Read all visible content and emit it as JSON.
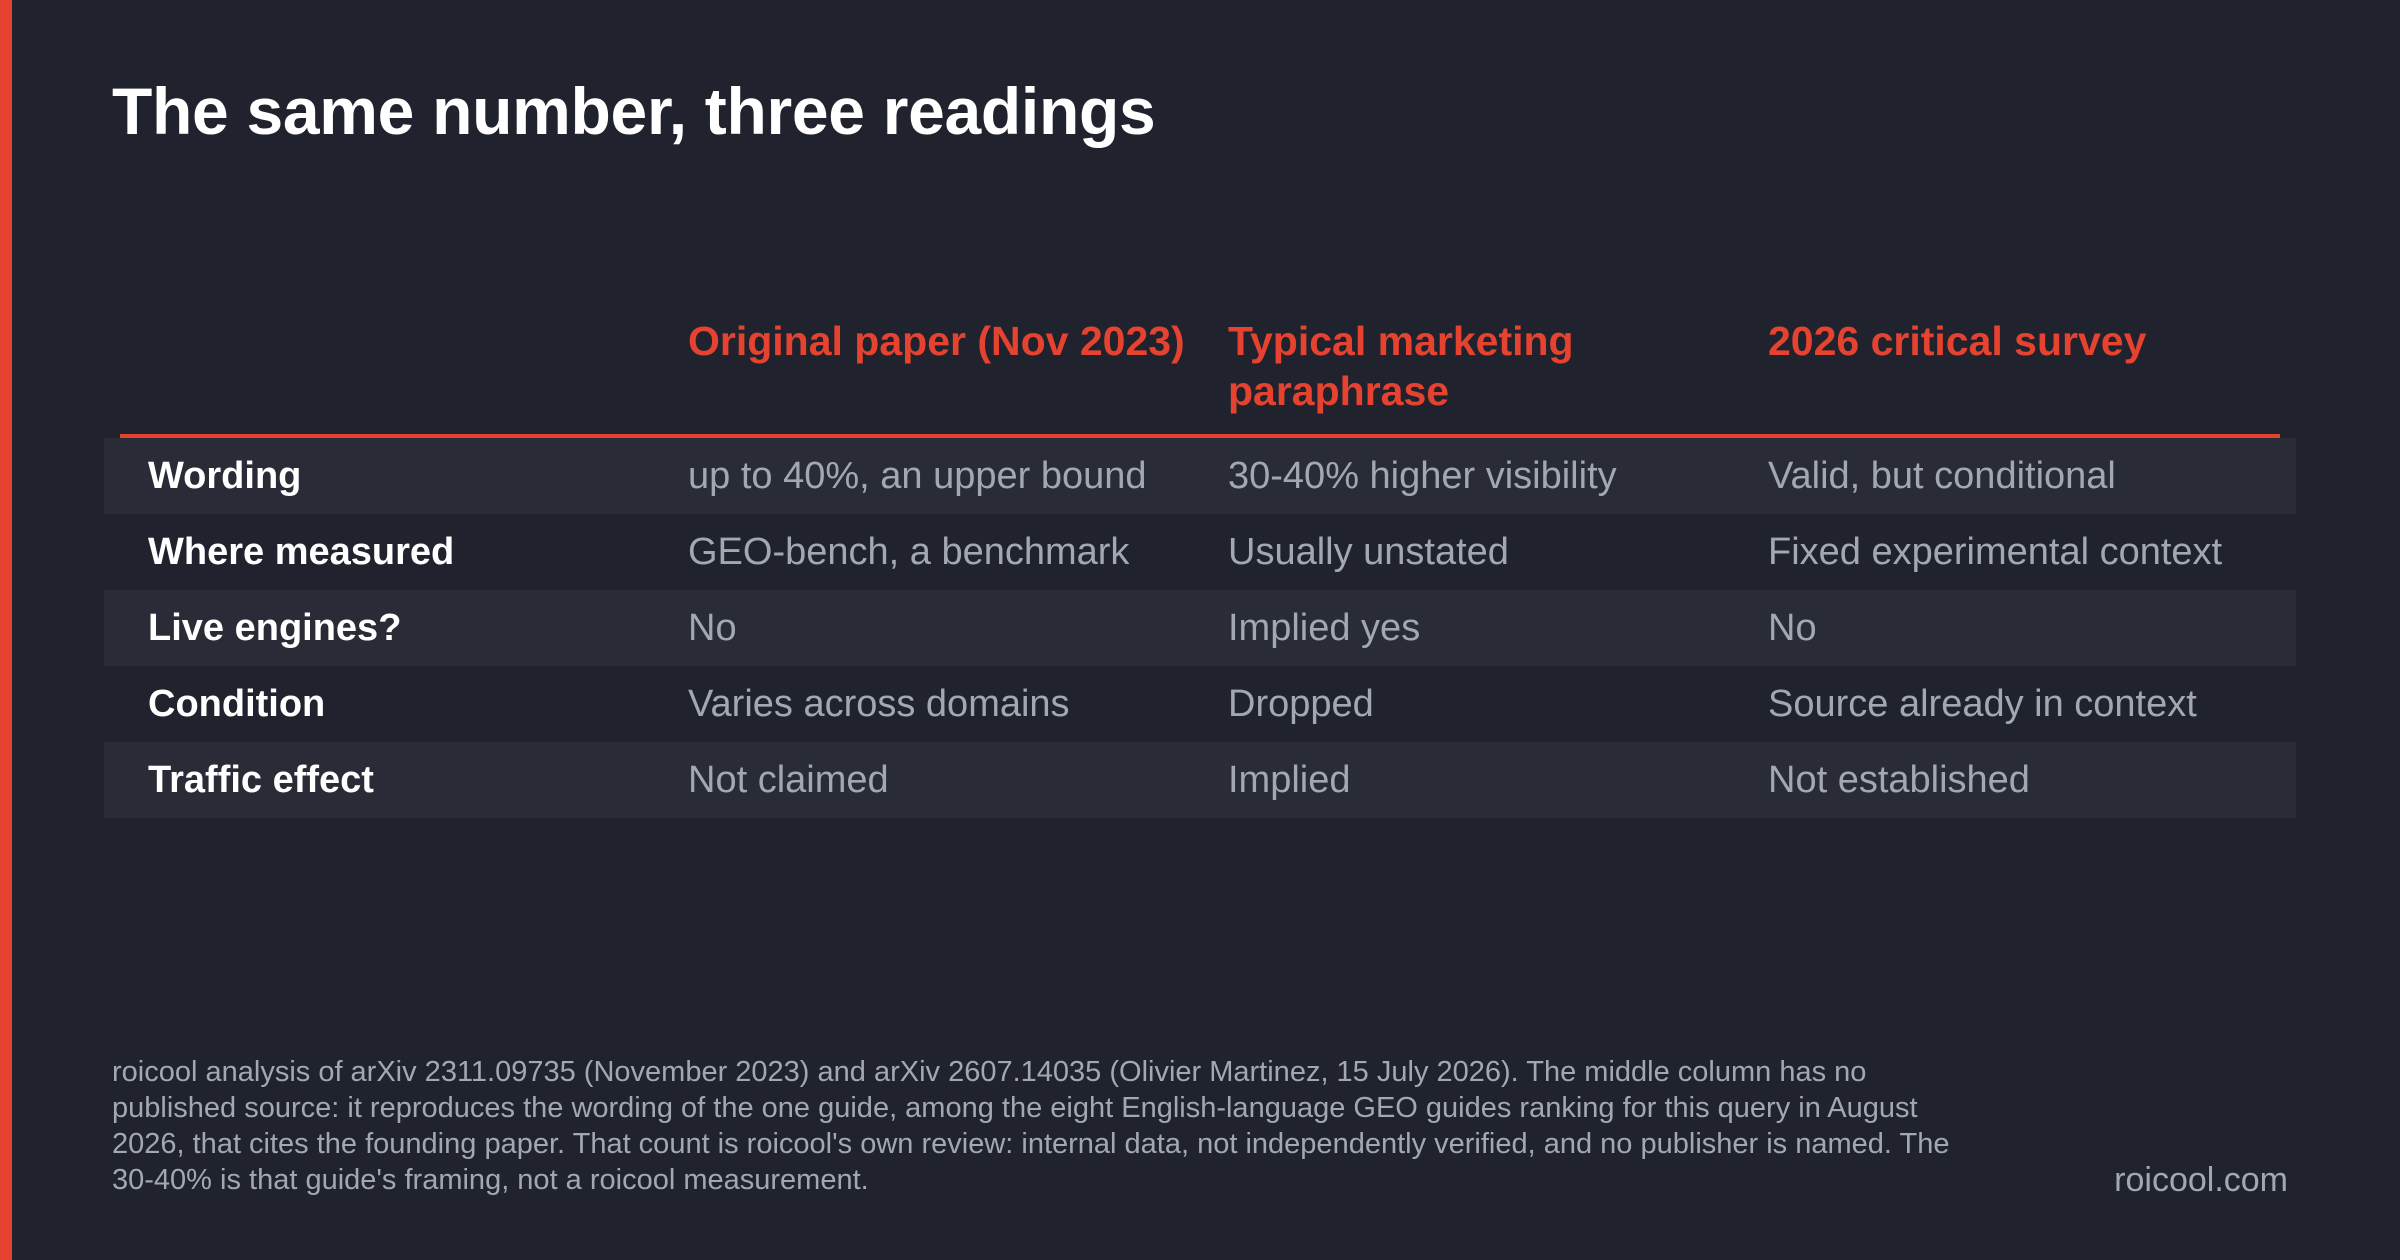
{
  "title": "The same number, three readings",
  "table": {
    "headers": [
      "",
      "Original paper (Nov 2023)",
      "Typical marketing paraphrase",
      "2026 critical survey"
    ],
    "rows": [
      {
        "label": "Wording",
        "cells": [
          "up to 40%, an upper bound",
          "30-40% higher visibility",
          "Valid, but conditional"
        ]
      },
      {
        "label": "Where measured",
        "cells": [
          "GEO-bench, a benchmark",
          "Usually unstated",
          "Fixed experimental context"
        ]
      },
      {
        "label": "Live engines?",
        "cells": [
          "No",
          "Implied yes",
          "No"
        ]
      },
      {
        "label": "Condition",
        "cells": [
          "Varies across domains",
          "Dropped",
          "Source already in context"
        ]
      },
      {
        "label": "Traffic effect",
        "cells": [
          "Not claimed",
          "Implied",
          "Not established"
        ]
      }
    ]
  },
  "source_note": "roicool analysis of arXiv 2311.09735 (November 2023) and arXiv 2607.14035 (Olivier Martinez, 15 July 2026). The middle column has no published source: it reproduces the wording of the one guide, among the eight English-language GEO guides ranking for this query in August 2026, that cites the founding paper. That count is roicool's own review: internal data, not independently verified, and no publisher is named. The 30-40% is that guide's framing, not a roicool measurement.",
  "brand": "roicool.com",
  "colors": {
    "background": "#20232e",
    "accent": "#e5432f",
    "shaded_row": "#292c37",
    "muted_text": "#a3a7b2"
  }
}
